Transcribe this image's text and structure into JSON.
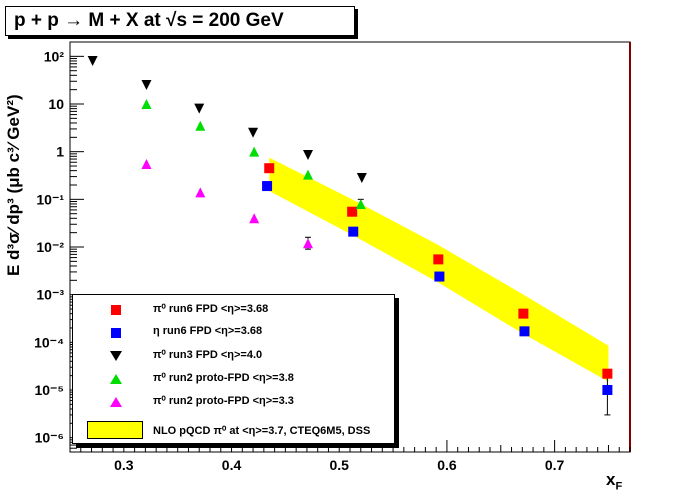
{
  "title": "p + p → M + X at √s = 200 GeV",
  "chart_data": {
    "type": "scatter",
    "title": "p + p → M + X at √s = 200 GeV",
    "xlabel": "x_F",
    "ylabel": "E d³σ/dp³ (μb c³/GeV²)",
    "xlim": [
      0.25,
      0.77
    ],
    "ylim": [
      5e-07,
      200
    ],
    "y_scale": "log",
    "x_ticks": [
      "0.3",
      "0.4",
      "0.5",
      "0.6",
      "0.7"
    ],
    "y_ticks": [
      "10⁻⁶",
      "10⁻⁵",
      "10⁻⁴",
      "10⁻³",
      "10⁻²",
      "10⁻¹",
      "1",
      "10",
      "10²"
    ],
    "grid": false,
    "legend_position": "bottom-left",
    "series": [
      {
        "name": "π⁰ run6 FPD <η>=3.68",
        "marker": "square",
        "color": "#ff0000",
        "x": [
          0.435,
          0.512,
          0.592,
          0.671,
          0.749
        ],
        "y": [
          0.45,
          0.055,
          0.0055,
          0.0004,
          2.2e-05
        ],
        "y_err_up": [
          null,
          null,
          null,
          null,
          null
        ]
      },
      {
        "name": "η run6 FPD <η>=3.68",
        "marker": "square",
        "color": "#0000ff",
        "x": [
          0.433,
          0.513,
          0.593,
          0.672,
          0.749
        ],
        "y": [
          0.19,
          0.021,
          0.0024,
          0.00017,
          1e-05
        ]
      },
      {
        "name": "π⁰ run3 FPD <η>=4.0",
        "marker": "triangle-down",
        "color": "#000000",
        "x": [
          0.271,
          0.321,
          0.37,
          0.42,
          0.471,
          0.521
        ],
        "y": [
          80,
          25,
          8,
          2.5,
          0.85,
          0.28
        ]
      },
      {
        "name": "π⁰ run2 proto-FPD <η>=3.8",
        "marker": "triangle-up",
        "color": "#00dd00",
        "x": [
          0.321,
          0.371,
          0.421,
          0.471,
          0.52
        ],
        "y": [
          10,
          3.5,
          1.0,
          0.33,
          0.08
        ]
      },
      {
        "name": "π⁰ run2 proto-FPD <η>=3.3",
        "marker": "triangle-up",
        "color": "#ff00ff",
        "x": [
          0.321,
          0.371,
          0.421,
          0.471
        ],
        "y": [
          0.55,
          0.14,
          0.04,
          0.012
        ]
      }
    ],
    "band": {
      "name": "NLO pQCD π⁰ at <η>=3.7, CTEQ6M5, DSS",
      "color": "#ffff00",
      "x": [
        0.435,
        0.512,
        0.592,
        0.671,
        0.75
      ],
      "y_high": [
        0.75,
        0.1,
        0.011,
        0.001,
        8.5e-05
      ],
      "y_low": [
        0.15,
        0.018,
        0.0018,
        0.00015,
        1.5e-05
      ]
    },
    "error_bars": [
      {
        "series": 1,
        "x": 0.749,
        "y_low": 3e-06,
        "y_high": 1.8e-05
      },
      {
        "series": 4,
        "x": 0.471,
        "y_low": 0.009,
        "y_high": 0.016
      },
      {
        "series": 3,
        "x": 0.52,
        "y_low": 0.065,
        "y_high": 0.1
      }
    ]
  },
  "legend": {
    "entries": [
      {
        "text": "π⁰  run6 FPD <η>=3.68",
        "marker": "square",
        "color": "#ff0000"
      },
      {
        "text": "η   run6 FPD <η>=3.68",
        "marker": "square",
        "color": "#0000ff"
      },
      {
        "text": "π⁰  run3 FPD  <η>=4.0",
        "marker": "triangle-down",
        "color": "#000000"
      },
      {
        "text": "π⁰  run2 proto-FPD  <η>=3.8",
        "marker": "triangle-up",
        "color": "#00dd00"
      },
      {
        "text": "π⁰  run2 proto-FPD  <η>=3.3",
        "marker": "triangle-up",
        "color": "#ff00ff"
      }
    ],
    "band_text": "NLO pQCD π⁰ at <η>=3.7, CTEQ6M5, DSS"
  },
  "axis_labels": {
    "x": "x",
    "x_sub": "F",
    "y": "E d³σ⁄ dp³ (μb c³⁄ GeV²)"
  }
}
